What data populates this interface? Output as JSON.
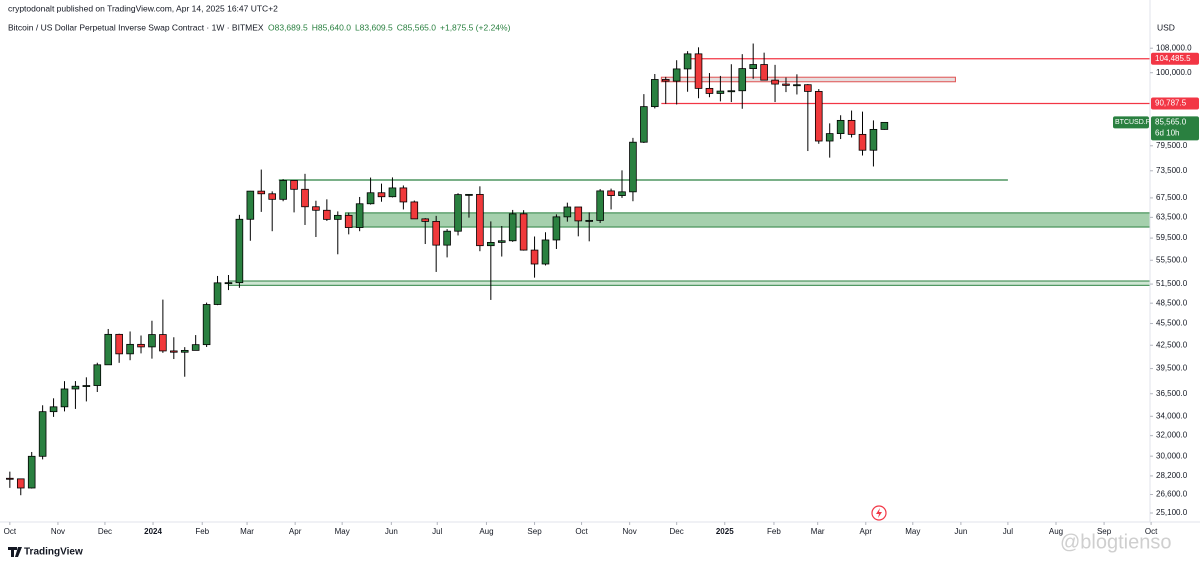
{
  "header": {
    "publisher": "cryptodonalt published on TradingView.com, Apr 14, 2025 16:47 UTC+2",
    "symbol_line": "Bitcoin / US Dollar Perpetual Inverse Swap Contract · 1W · BITMEX",
    "ohlc": [
      "O83,689.5",
      "H85,640.0",
      "L83,609.5",
      "C85,565.0",
      "+1,875.5 (+2.24%)"
    ]
  },
  "chart_data": {
    "type": "candlestick",
    "log_scale": true,
    "grid": false,
    "currency": "USD",
    "up_color": "#2a8040",
    "down_color": "#f0393b",
    "candles": {
      "open": [
        27990,
        27940,
        27150,
        29990,
        34500,
        35030,
        37050,
        37370,
        37450,
        39970,
        43980,
        41370,
        42620,
        42280,
        43950,
        41750,
        41580,
        41820,
        42580,
        48300,
        51700,
        51730,
        63120,
        68950,
        68380,
        67200,
        71300,
        69350,
        65650,
        64930,
        63100,
        63900,
        61500,
        66270,
        68600,
        67750,
        69650,
        66650,
        63200,
        62700,
        58200,
        60800,
        68200,
        68250,
        58100,
        58700,
        59000,
        64200,
        57300,
        54850,
        59150,
        63600,
        65600,
        62800,
        62900,
        69000,
        68000,
        68800,
        80400,
        89900,
        97900,
        97400,
        101200,
        106100,
        95200,
        93700,
        94400,
        94500,
        101300,
        102600,
        97700,
        96500,
        96100,
        96300,
        94300,
        80700,
        82600,
        86100,
        82400,
        78400,
        83689.5
      ],
      "high": [
        28580,
        27970,
        30400,
        35200,
        35980,
        37970,
        37980,
        38430,
        40230,
        44730,
        44070,
        44380,
        43820,
        45900,
        49050,
        43580,
        42250,
        43880,
        48590,
        52830,
        52990,
        64000,
        69000,
        73780,
        68900,
        71600,
        71350,
        72800,
        66900,
        67200,
        64700,
        64440,
        67700,
        71950,
        70600,
        71990,
        70190,
        66950,
        63350,
        63800,
        61200,
        68500,
        68200,
        70000,
        62700,
        61800,
        65000,
        64950,
        59800,
        60600,
        64100,
        66500,
        65600,
        64500,
        69400,
        69500,
        73600,
        81500,
        93500,
        99600,
        98700,
        104000,
        107000,
        108300,
        99900,
        99000,
        102700,
        106000,
        109600,
        106500,
        102500,
        98500,
        99500,
        96500,
        95000,
        85300,
        87500,
        88800,
        88500,
        86100,
        85640
      ],
      "low": [
        27160,
        26540,
        27100,
        29700,
        33940,
        34530,
        34800,
        35630,
        36700,
        39970,
        40220,
        40550,
        41430,
        40750,
        41500,
        40700,
        38500,
        41880,
        42270,
        48200,
        50540,
        50900,
        59000,
        64600,
        60800,
        66800,
        64500,
        62000,
        59700,
        62800,
        56550,
        60200,
        60800,
        66100,
        66700,
        67600,
        65100,
        63400,
        58400,
        53500,
        56000,
        60000,
        63450,
        57100,
        49000,
        56150,
        58800,
        57200,
        52550,
        54600,
        57500,
        62650,
        59830,
        58900,
        62400,
        65100,
        67500,
        66800,
        80200,
        89400,
        90700,
        90500,
        94200,
        92300,
        92600,
        91400,
        91200,
        89300,
        98100,
        97800,
        91200,
        94100,
        93400,
        78200,
        80000,
        76600,
        81200,
        81600,
        77100,
        74500,
        83609.5
      ],
      "close": [
        27940,
        27150,
        29990,
        34500,
        35030,
        37050,
        37370,
        37450,
        39970,
        43980,
        41370,
        42620,
        42280,
        43950,
        41750,
        41580,
        41820,
        42580,
        48300,
        51700,
        51730,
        63120,
        68950,
        68380,
        67200,
        71300,
        69350,
        65650,
        64930,
        63100,
        63900,
        61500,
        66270,
        68600,
        67750,
        69650,
        66650,
        63200,
        62700,
        58200,
        60800,
        68200,
        68250,
        58100,
        58700,
        59000,
        64200,
        57300,
        54850,
        59150,
        63600,
        65600,
        62800,
        62900,
        69000,
        68000,
        68800,
        80400,
        89900,
        97900,
        97400,
        101200,
        106100,
        95200,
        93700,
        94400,
        94500,
        101300,
        102600,
        97700,
        96500,
        96100,
        96300,
        94300,
        80700,
        82600,
        86100,
        82400,
        78400,
        83700,
        85565
      ]
    },
    "xlim": [
      -0.9,
      104.3
    ],
    "xticks": [
      {
        "value": 0,
        "label": "Oct"
      },
      {
        "value": 4.4,
        "label": "Nov"
      },
      {
        "value": 8.7,
        "label": "Dec"
      },
      {
        "value": 13.1,
        "label": "2024"
      },
      {
        "value": 17.6,
        "label": "Feb"
      },
      {
        "value": 21.7,
        "label": "Mar"
      },
      {
        "value": 26.1,
        "label": "Apr"
      },
      {
        "value": 30.4,
        "label": "May"
      },
      {
        "value": 34.9,
        "label": "Jun"
      },
      {
        "value": 39.1,
        "label": "Jul"
      },
      {
        "value": 43.6,
        "label": "Aug"
      },
      {
        "value": 48.0,
        "label": "Sep"
      },
      {
        "value": 52.3,
        "label": "Oct"
      },
      {
        "value": 56.7,
        "label": "Nov"
      },
      {
        "value": 61.0,
        "label": "Dec"
      },
      {
        "value": 65.4,
        "label": "2025"
      },
      {
        "value": 69.9,
        "label": "Feb"
      },
      {
        "value": 73.9,
        "label": "Mar"
      },
      {
        "value": 78.3,
        "label": "Apr"
      },
      {
        "value": 82.6,
        "label": "May"
      },
      {
        "value": 87.0,
        "label": "Jun"
      },
      {
        "value": 91.3,
        "label": "Jul"
      },
      {
        "value": 95.7,
        "label": "Aug"
      },
      {
        "value": 100.1,
        "label": "Sep"
      },
      {
        "value": 104.4,
        "label": "Oct"
      }
    ],
    "ylim": [
      24400,
      118000
    ],
    "yticks": [
      {
        "value": 108000,
        "label": "108,000.0"
      },
      {
        "value": 100000,
        "label": "100,000.0"
      },
      {
        "value": 79500,
        "label": "79,500.0"
      },
      {
        "value": 73500,
        "label": "73,500.0"
      },
      {
        "value": 67500,
        "label": "67,500.0"
      },
      {
        "value": 63500,
        "label": "63,500.0"
      },
      {
        "value": 59500,
        "label": "59,500.0"
      },
      {
        "value": 55500,
        "label": "55,500.0"
      },
      {
        "value": 51500,
        "label": "51,500.0"
      },
      {
        "value": 48500,
        "label": "48,500.0"
      },
      {
        "value": 45500,
        "label": "45,500.0"
      },
      {
        "value": 42500,
        "label": "42,500.0"
      },
      {
        "value": 39500,
        "label": "39,500.0"
      },
      {
        "value": 36500,
        "label": "36,500.0"
      },
      {
        "value": 34000,
        "label": "34,000.0"
      },
      {
        "value": 32000,
        "label": "32,000.0"
      },
      {
        "value": 30000,
        "label": "30,000.0"
      },
      {
        "value": 28200,
        "label": "28,200.0"
      },
      {
        "value": 26600,
        "label": "26,600.0"
      },
      {
        "value": 25100,
        "label": "25,100.0"
      }
    ],
    "price_labels": [
      {
        "value": 104485.5,
        "label": "104,485.5",
        "color": "#f23645"
      },
      {
        "value": 90787.5,
        "label": "90,787.5",
        "color": "#f23645"
      }
    ],
    "last_price": {
      "value": 85565,
      "label": "85,565.0",
      "symbol": "BTCUSD.P",
      "countdown": "6d 10h",
      "color": "#2a8040"
    },
    "zones": [
      {
        "top": 104485.5,
        "bottom": 104485.5,
        "start": 62.2,
        "end": 104.3,
        "stroke": "#f23645",
        "fill": "none"
      },
      {
        "top": 90787.5,
        "bottom": 90787.5,
        "start": 59.6,
        "end": 104.3,
        "stroke": "#f23645",
        "fill": "none"
      },
      {
        "top": 98600,
        "bottom": 97200,
        "start": 59.6,
        "end": 86.5,
        "stroke": "#e05050",
        "fill": "#e6dede"
      },
      {
        "top": 71400,
        "bottom": 71400,
        "start": 24.6,
        "end": 91.3,
        "stroke": "#2a8040",
        "fill": "none"
      },
      {
        "top": 64400,
        "bottom": 61600,
        "start": 30.7,
        "end": 104.3,
        "stroke": "#2a8040",
        "fill": "#a5d0ad"
      },
      {
        "top": 52000,
        "bottom": 51300,
        "start": 20,
        "end": 104.3,
        "stroke": "#2a8040",
        "fill": "#cfe6d3"
      }
    ]
  },
  "footer": {
    "brand": "TradingView",
    "watermark": "@blogtienso"
  }
}
